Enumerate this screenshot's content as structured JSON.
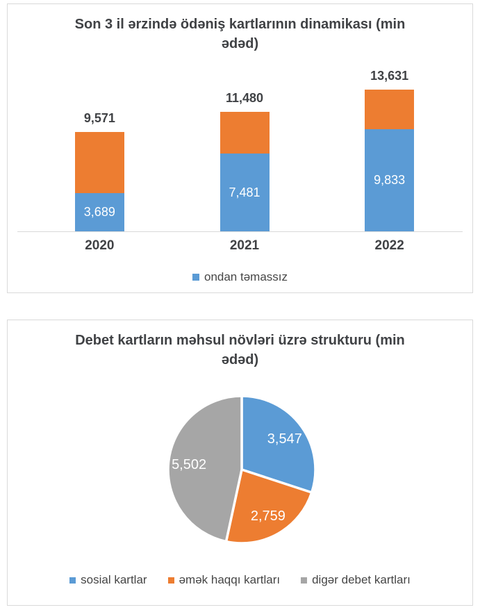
{
  "bar_chart": {
    "title": "Son 3 il ərzində ödəniş kartlarının dinamikası (min ədəd)",
    "chart_data": {
      "type": "bar",
      "stacked": true,
      "categories": [
        "2020",
        "2021",
        "2022"
      ],
      "totals": [
        9571,
        11480,
        13631
      ],
      "total_labels": [
        "9,571",
        "11,480",
        "13,631"
      ],
      "series": [
        {
          "name": "ondan təmassız",
          "color": "#5B9BD5",
          "values": [
            3689,
            7481,
            9833
          ],
          "value_labels": [
            "3,689",
            "7,481",
            "9,833"
          ]
        }
      ],
      "remainder_color": "#ED7D31",
      "legend": [
        {
          "label": "ondan təmassız",
          "color": "#5B9BD5"
        }
      ],
      "legend_position": "bottom",
      "gridlines": false,
      "axis_line_color": "#d9d9d9"
    }
  },
  "pie_chart": {
    "title": "Debet kartların məhsul növləri üzrə strukturu (min ədəd)",
    "chart_data": {
      "type": "pie",
      "direction": "clockwise",
      "start_angle_deg": 0,
      "slices": [
        {
          "label": "sosial kartlar",
          "value": 3547,
          "value_label": "3,547",
          "color": "#5B9BD5"
        },
        {
          "label": "əmək haqqı kartları",
          "value": 2759,
          "value_label": "2,759",
          "color": "#ED7D31"
        },
        {
          "label": "digər debet kartları",
          "value": 5502,
          "value_label": "5,502",
          "color": "#A6A6A6"
        }
      ],
      "legend_position": "bottom"
    }
  },
  "colors": {
    "blue": "#5B9BD5",
    "orange": "#ED7D31",
    "gray": "#A6A6A6",
    "text_dark": "#404245",
    "panel_border": "#d9d9d9",
    "label_white": "#ffffff"
  }
}
